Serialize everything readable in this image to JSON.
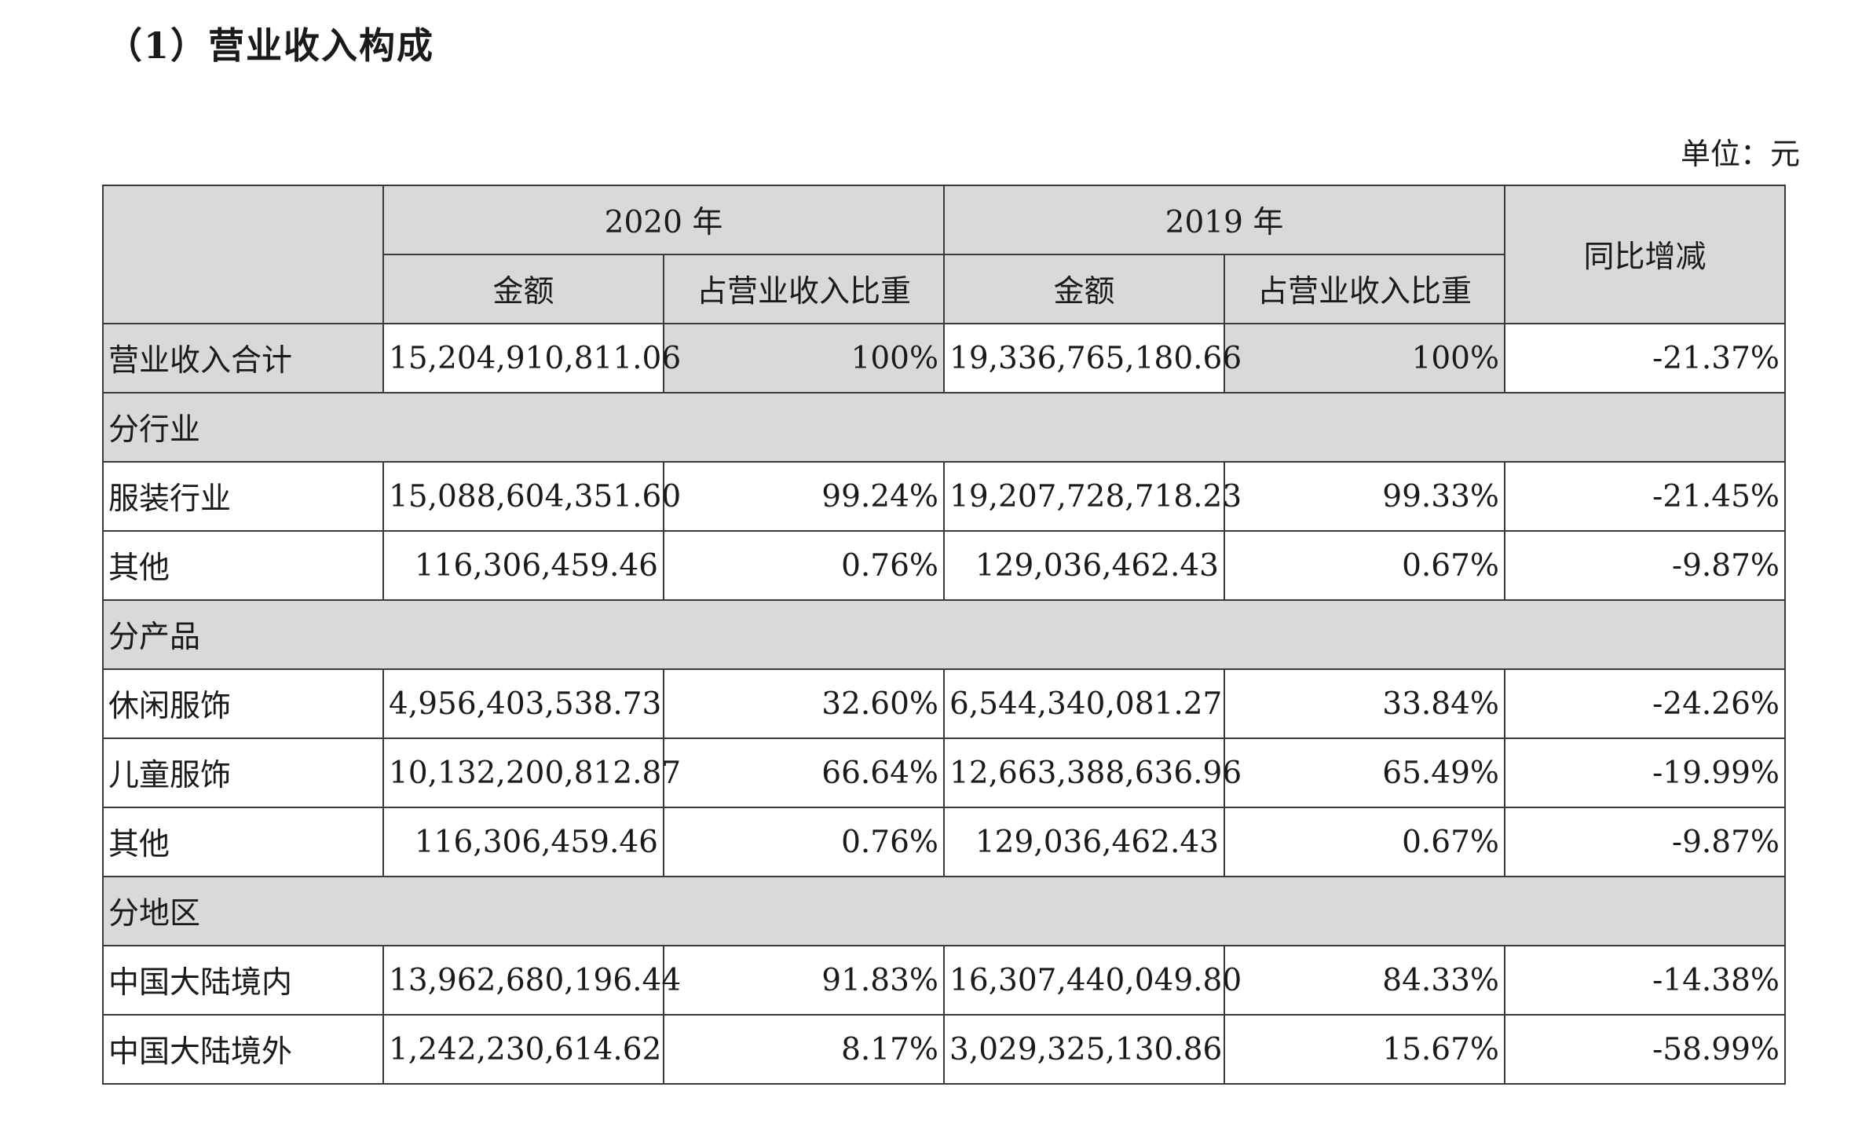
{
  "title": "（1）营业收入构成",
  "unit": "单位：元",
  "headers": {
    "year1": "2020 年",
    "year2": "2019 年",
    "yoy": "同比增减",
    "amount": "金额",
    "share": "占营业收入比重"
  },
  "total": {
    "label": "营业收入合计",
    "a2020": "15,204,910,811.06",
    "p2020": "100%",
    "a2019": "19,336,765,180.66",
    "p2019": "100%",
    "yoy": "-21.37%"
  },
  "groups": [
    {
      "label": "分行业",
      "rows": [
        {
          "label": "服装行业",
          "a2020": "15,088,604,351.60",
          "p2020": "99.24%",
          "a2019": "19,207,728,718.23",
          "p2019": "99.33%",
          "yoy": "-21.45%"
        },
        {
          "label": "其他",
          "a2020": "116,306,459.46",
          "p2020": "0.76%",
          "a2019": "129,036,462.43",
          "p2019": "0.67%",
          "yoy": "-9.87%"
        }
      ]
    },
    {
      "label": "分产品",
      "rows": [
        {
          "label": "休闲服饰",
          "a2020": "4,956,403,538.73",
          "p2020": "32.60%",
          "a2019": "6,544,340,081.27",
          "p2019": "33.84%",
          "yoy": "-24.26%"
        },
        {
          "label": "儿童服饰",
          "a2020": "10,132,200,812.87",
          "p2020": "66.64%",
          "a2019": "12,663,388,636.96",
          "p2019": "65.49%",
          "yoy": "-19.99%"
        },
        {
          "label": "其他",
          "a2020": "116,306,459.46",
          "p2020": "0.76%",
          "a2019": "129,036,462.43",
          "p2019": "0.67%",
          "yoy": "-9.87%"
        }
      ]
    },
    {
      "label": "分地区",
      "rows": [
        {
          "label": "中国大陆境内",
          "a2020": "13,962,680,196.44",
          "p2020": "91.83%",
          "a2019": "16,307,440,049.80",
          "p2019": "84.33%",
          "yoy": "-14.38%"
        },
        {
          "label": "中国大陆境外",
          "a2020": "1,242,230,614.62",
          "p2020": "8.17%",
          "a2019": "3,029,325,130.86",
          "p2019": "15.67%",
          "yoy": "-58.99%"
        }
      ]
    }
  ]
}
